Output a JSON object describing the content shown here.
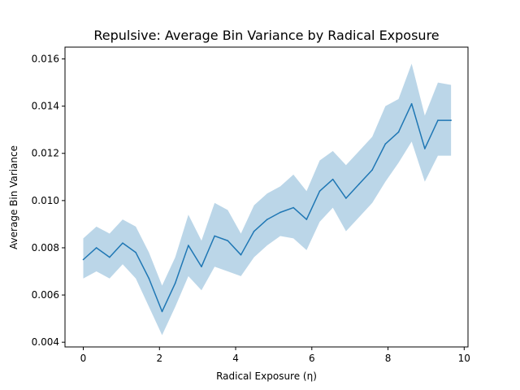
{
  "chart_data": {
    "type": "line",
    "title": "Repulsive: Average Bin Variance by Radical Exposure",
    "xlabel": "Radical Exposure (η)",
    "ylabel": "Average Bin Variance",
    "xlim": [
      -0.48,
      10.1
    ],
    "ylim": [
      0.0038,
      0.0165
    ],
    "x_ticks": [
      0,
      2,
      4,
      6,
      8,
      10
    ],
    "x_tick_labels": [
      "0",
      "2",
      "4",
      "6",
      "8",
      "10"
    ],
    "y_ticks": [
      0.004,
      0.006,
      0.008,
      0.01,
      0.012,
      0.014,
      0.016
    ],
    "y_tick_labels": [
      "0.004",
      "0.006",
      "0.008",
      "0.010",
      "0.012",
      "0.014",
      "0.016"
    ],
    "grid": false,
    "series": [
      {
        "color": "#1f77b4",
        "band_color": "#1f77b4",
        "band_opacity": 0.3,
        "x": [
          0.0,
          0.345,
          0.69,
          1.034,
          1.379,
          1.724,
          2.069,
          2.414,
          2.759,
          3.103,
          3.448,
          3.793,
          4.138,
          4.483,
          4.828,
          5.172,
          5.517,
          5.862,
          6.207,
          6.552,
          6.897,
          7.241,
          7.586,
          7.931,
          8.276,
          8.621,
          8.966,
          9.31,
          9.655
        ],
        "y": [
          0.0075,
          0.008,
          0.0076,
          0.0082,
          0.0078,
          0.0067,
          0.0053,
          0.0065,
          0.0081,
          0.0072,
          0.0085,
          0.0083,
          0.0077,
          0.0087,
          0.0092,
          0.0095,
          0.0097,
          0.0092,
          0.0104,
          0.0109,
          0.0101,
          0.0107,
          0.0113,
          0.0124,
          0.0129,
          0.0141,
          0.0122,
          0.0134,
          0.0134
        ],
        "lower": [
          0.0067,
          0.007,
          0.0067,
          0.0073,
          0.0067,
          0.0055,
          0.0043,
          0.0055,
          0.0068,
          0.0062,
          0.0072,
          0.007,
          0.0068,
          0.0076,
          0.0081,
          0.0085,
          0.0084,
          0.0079,
          0.0091,
          0.0097,
          0.0087,
          0.0093,
          0.0099,
          0.0108,
          0.0116,
          0.0125,
          0.0108,
          0.0119,
          0.0119
        ],
        "upper": [
          0.0084,
          0.0089,
          0.0086,
          0.0092,
          0.0089,
          0.0078,
          0.0064,
          0.0076,
          0.0094,
          0.0083,
          0.0099,
          0.0096,
          0.0086,
          0.0098,
          0.0103,
          0.0106,
          0.0111,
          0.0104,
          0.0117,
          0.0121,
          0.0115,
          0.0121,
          0.0127,
          0.014,
          0.0143,
          0.0158,
          0.0136,
          0.015,
          0.0149
        ]
      }
    ]
  }
}
